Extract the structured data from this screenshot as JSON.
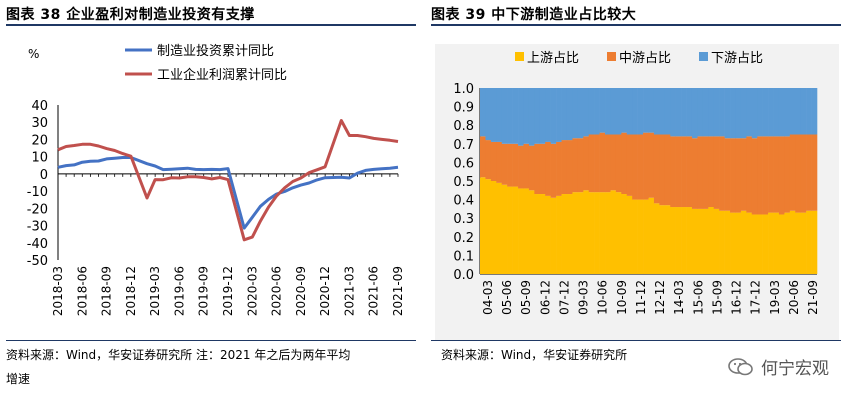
{
  "figure38": {
    "title": "图表 38   企业盈利对制造业投资有支撑",
    "source": "资料来源：Wind，华安证券研究所 注：2021 年之后为两年平均",
    "source_cont": "增速"
  },
  "figure39": {
    "title": "图表 39  中下游制造业占比较大",
    "source": "资料来源：Wind，华安证券研究所"
  },
  "watermark": {
    "text": "何宁宏观"
  },
  "colors": {
    "blue": "#4472c4",
    "red": "#c0504d",
    "yellow": "#ffc000",
    "orange": "#ed7d31",
    "lightblue": "#5b9bd5",
    "rule": "#1f3864"
  },
  "chart_data": [
    {
      "type": "line",
      "ylabel": "%",
      "ylim": [
        -50,
        40
      ],
      "yticks": [
        40,
        30,
        20,
        10,
        0,
        -10,
        -20,
        -30,
        -40,
        -50
      ],
      "x": [
        "2018-03",
        "2018-04",
        "2018-05",
        "2018-06",
        "2018-07",
        "2018-08",
        "2018-09",
        "2018-10",
        "2018-11",
        "2018-12",
        "2019-01",
        "2019-02",
        "2019-03",
        "2019-04",
        "2019-05",
        "2019-06",
        "2019-07",
        "2019-08",
        "2019-09",
        "2019-10",
        "2019-11",
        "2019-12",
        "2020-01",
        "2020-02",
        "2020-03",
        "2020-04",
        "2020-05",
        "2020-06",
        "2020-07",
        "2020-08",
        "2020-09",
        "2020-10",
        "2020-11",
        "2020-12",
        "2021-01",
        "2021-02",
        "2021-03",
        "2021-04",
        "2021-05",
        "2021-06",
        "2021-07",
        "2021-08",
        "2021-09"
      ],
      "xtick_labels": [
        "2018-03",
        "2018-06",
        "2018-09",
        "2018-12",
        "2019-03",
        "2019-06",
        "2019-09",
        "2019-12",
        "2020-03",
        "2020-06",
        "2020-09",
        "2020-12",
        "2021-03",
        "2021-06",
        "2021-09"
      ],
      "series": [
        {
          "name": "制造业投资累计同比",
          "color": "#4472c4",
          "values": [
            3.8,
            4.8,
            5.2,
            6.8,
            7.3,
            7.5,
            8.7,
            9.1,
            9.5,
            9.5,
            null,
            5.9,
            4.6,
            2.5,
            2.7,
            3.0,
            3.3,
            2.6,
            2.5,
            2.6,
            2.5,
            3.1,
            null,
            -31.5,
            -25.2,
            -18.8,
            -14.8,
            -11.7,
            -10.2,
            -8.1,
            -6.5,
            -5.3,
            -3.5,
            -2.2,
            null,
            -2.0,
            -2.4,
            0.4,
            2.0,
            2.6,
            3.0,
            3.3,
            3.8
          ]
        },
        {
          "name": "工业企业利润累计同比",
          "color": "#c0504d",
          "values": [
            14.0,
            15.9,
            16.5,
            17.2,
            17.2,
            16.2,
            14.7,
            13.6,
            11.8,
            10.3,
            null,
            -14.0,
            -3.3,
            -3.4,
            -2.3,
            -2.4,
            -1.7,
            -1.7,
            -2.1,
            -2.9,
            -2.1,
            -3.3,
            null,
            -38.3,
            -36.7,
            -27.4,
            -19.3,
            -12.8,
            -8.1,
            -4.4,
            -2.4,
            0.7,
            2.4,
            4.1,
            null,
            31.0,
            22.3,
            22.3,
            21.6,
            20.6,
            20.0,
            19.5,
            18.8
          ]
        }
      ]
    },
    {
      "type": "bar",
      "stacked": true,
      "ylim": [
        0,
        1
      ],
      "yticks": [
        "0.0",
        "0.1",
        "0.2",
        "0.3",
        "0.4",
        "0.5",
        "0.6",
        "0.7",
        "0.8",
        "0.9",
        "1.0"
      ],
      "categories_count": 62,
      "xtick_labels": [
        "04-03",
        "05-06",
        "05-09",
        "06-12",
        "07-12",
        "09-03",
        "10-06",
        "10-09",
        "11-12",
        "12-12",
        "14-03",
        "15-06",
        "15-09",
        "16-12",
        "17-12",
        "19-03",
        "20-06",
        "21-09"
      ],
      "series": [
        {
          "name": "上游占比",
          "color": "#ffc000",
          "values": [
            0.52,
            0.51,
            0.5,
            0.49,
            0.48,
            0.47,
            0.47,
            0.46,
            0.46,
            0.45,
            0.43,
            0.43,
            0.42,
            0.41,
            0.42,
            0.43,
            0.43,
            0.44,
            0.44,
            0.45,
            0.44,
            0.44,
            0.44,
            0.44,
            0.45,
            0.44,
            0.43,
            0.42,
            0.4,
            0.4,
            0.4,
            0.41,
            0.38,
            0.37,
            0.37,
            0.36,
            0.36,
            0.36,
            0.36,
            0.35,
            0.35,
            0.35,
            0.36,
            0.35,
            0.34,
            0.34,
            0.33,
            0.33,
            0.34,
            0.33,
            0.32,
            0.32,
            0.32,
            0.33,
            0.33,
            0.32,
            0.33,
            0.34,
            0.33,
            0.33,
            0.34,
            0.34
          ]
        },
        {
          "name": "中游占比",
          "color": "#ed7d31",
          "values": [
            0.22,
            0.21,
            0.21,
            0.22,
            0.22,
            0.23,
            0.23,
            0.23,
            0.24,
            0.24,
            0.27,
            0.27,
            0.29,
            0.29,
            0.29,
            0.29,
            0.29,
            0.29,
            0.29,
            0.29,
            0.31,
            0.31,
            0.32,
            0.31,
            0.3,
            0.31,
            0.33,
            0.33,
            0.35,
            0.35,
            0.36,
            0.35,
            0.37,
            0.38,
            0.38,
            0.38,
            0.38,
            0.38,
            0.38,
            0.38,
            0.39,
            0.39,
            0.38,
            0.39,
            0.4,
            0.39,
            0.4,
            0.4,
            0.39,
            0.41,
            0.41,
            0.42,
            0.42,
            0.41,
            0.41,
            0.42,
            0.41,
            0.41,
            0.42,
            0.42,
            0.41,
            0.41
          ]
        },
        {
          "name": "下游占比",
          "color": "#5b9bd5",
          "values": [
            0.26,
            0.28,
            0.29,
            0.29,
            0.3,
            0.3,
            0.3,
            0.31,
            0.3,
            0.31,
            0.3,
            0.3,
            0.29,
            0.3,
            0.29,
            0.28,
            0.28,
            0.27,
            0.27,
            0.26,
            0.25,
            0.25,
            0.24,
            0.25,
            0.25,
            0.25,
            0.24,
            0.25,
            0.25,
            0.25,
            0.24,
            0.24,
            0.25,
            0.25,
            0.25,
            0.26,
            0.26,
            0.26,
            0.26,
            0.27,
            0.26,
            0.26,
            0.26,
            0.26,
            0.26,
            0.27,
            0.27,
            0.27,
            0.27,
            0.26,
            0.27,
            0.26,
            0.26,
            0.26,
            0.26,
            0.26,
            0.26,
            0.25,
            0.25,
            0.25,
            0.25,
            0.25
          ]
        }
      ]
    }
  ]
}
